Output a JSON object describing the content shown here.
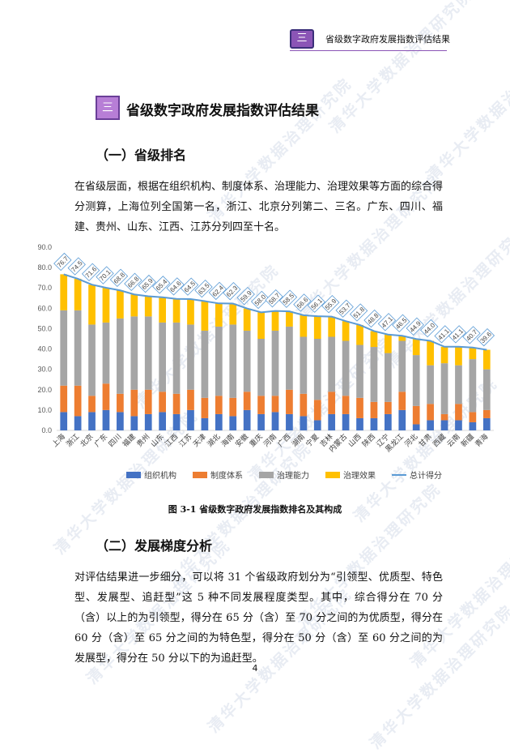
{
  "header": {
    "badge": "三",
    "title": "省级数字政府发展指数评估结果"
  },
  "section": {
    "badge": "三",
    "title": "省级数字政府发展指数评估结果"
  },
  "subsection1": {
    "title": "（一）省级排名",
    "paragraph": "在省级层面，根据在组织机构、制度体系、治理能力、治理效果等方面的综合得分测算，上海位列全国第一名，浙江、北京分列第二、三名。广东、四川、福建、贵州、山东、江西、江苏分列四至十名。"
  },
  "figure": {
    "caption": "图 3-1   省级数字政府发展指数排名及其构成"
  },
  "subsection2": {
    "title": "（二）发展梯度分析",
    "paragraph": "对评估结果进一步细分，可以将 31 个省级政府划分为“引领型、优质型、特色型、发展型、追赶型”这 5 种不同发展程度类型。其中，综合得分在 70 分（含）以上的为引领型，得分在 65 分（含）至 70 分之间的为优质型，得分在 60 分（含）至 65 分之间的为特色型，得分在 50 分（含）至 60 分之间的为发展型，得分在 50 分以下的为追赶型。"
  },
  "page_number": "4",
  "watermark_text": "清华大学数据治理研究院",
  "colors": {
    "org": "#4472c4",
    "system": "#ed7d31",
    "capacity": "#a5a5a5",
    "effect": "#ffc000",
    "total": "#5b9bd5",
    "accent": "#8b55b6"
  },
  "chart_data": {
    "type": "bar",
    "stacked": true,
    "ylim": [
      0,
      90
    ],
    "yticks": [
      "0.0",
      "10.0",
      "20.0",
      "30.0",
      "40.0",
      "50.0",
      "60.0",
      "70.0",
      "80.0",
      "90.0"
    ],
    "categories": [
      "上海",
      "浙江",
      "北京",
      "广东",
      "四川",
      "福建",
      "贵州",
      "山东",
      "江西",
      "江苏",
      "天津",
      "湖北",
      "海南",
      "安徽",
      "重庆",
      "河南",
      "广西",
      "湖南",
      "宁夏",
      "吉林",
      "内蒙古",
      "山西",
      "陕西",
      "辽宁",
      "黑龙江",
      "河北",
      "甘肃",
      "西藏",
      "云南",
      "新疆",
      "青海"
    ],
    "series": [
      {
        "name": "组织机构",
        "color": "#4472c4",
        "values": [
          9,
          7,
          9,
          10,
          9,
          7,
          8,
          9,
          8,
          10,
          6,
          8,
          7,
          10,
          8,
          9,
          8,
          7,
          5,
          8,
          8,
          6,
          6,
          8,
          10,
          3,
          5,
          5,
          5,
          4,
          6
        ]
      },
      {
        "name": "制度体系",
        "color": "#ed7d31",
        "values": [
          13,
          15,
          8,
          13,
          9,
          13,
          12,
          10,
          10,
          10,
          10,
          9,
          9,
          9,
          9,
          8,
          12,
          11,
          10,
          11,
          9,
          10,
          8,
          6,
          9,
          9,
          8,
          3,
          8,
          5,
          4
        ]
      },
      {
        "name": "治理能力",
        "color": "#a5a5a5",
        "values": [
          37,
          37,
          35,
          30,
          37,
          36,
          36,
          34,
          35,
          32,
          33,
          34,
          36,
          30,
          28,
          32,
          31,
          28,
          30,
          27,
          27,
          26,
          27,
          24,
          25,
          25,
          19,
          25,
          19,
          26,
          20
        ]
      },
      {
        "name": "治理效果",
        "color": "#ffc000",
        "values": [
          17.7,
          15.5,
          19.6,
          17.1,
          13.8,
          10.8,
          9.9,
          12.4,
          11.6,
          12.5,
          14.5,
          11.4,
          10.3,
          10.9,
          13.0,
          9.7,
          7.5,
          10.6,
          11.1,
          9.9,
          9.7,
          9.8,
          7.8,
          9.1,
          2.5,
          7.9,
          12.0,
          8.1,
          9.1,
          5.7,
          9.6
        ]
      },
      {
        "name": "总计得分",
        "color": "#5b9bd5",
        "type": "line",
        "values": [
          76.7,
          74.5,
          71.6,
          70.1,
          68.8,
          66.8,
          65.9,
          65.4,
          64.6,
          64.5,
          63.5,
          62.4,
          62.3,
          59.9,
          58.0,
          58.7,
          58.5,
          56.6,
          56.1,
          55.9,
          53.7,
          51.8,
          48.8,
          47.1,
          46.5,
          44.9,
          44.0,
          41.1,
          41.1,
          40.7,
          39.6
        ]
      }
    ],
    "data_labels": [
      "76.7",
      "74.5",
      "71.6",
      "70.1",
      "68.8",
      "66.8",
      "65.9",
      "65.4",
      "64.6",
      "64.5",
      "63.5",
      "62.4",
      "62.3",
      "59.9",
      "58.0",
      "58.7",
      "58.5",
      "56.6",
      "56.1",
      "55.9",
      "53.7",
      "51.8",
      "48.8",
      "47.1",
      "46.5",
      "44.9",
      "44.0",
      "41.1",
      "41.1",
      "40.7",
      "39.6"
    ],
    "legend": [
      "组织机构",
      "制度体系",
      "治理能力",
      "治理效果",
      "总计得分"
    ],
    "legend_position": "bottom",
    "grid": false
  }
}
